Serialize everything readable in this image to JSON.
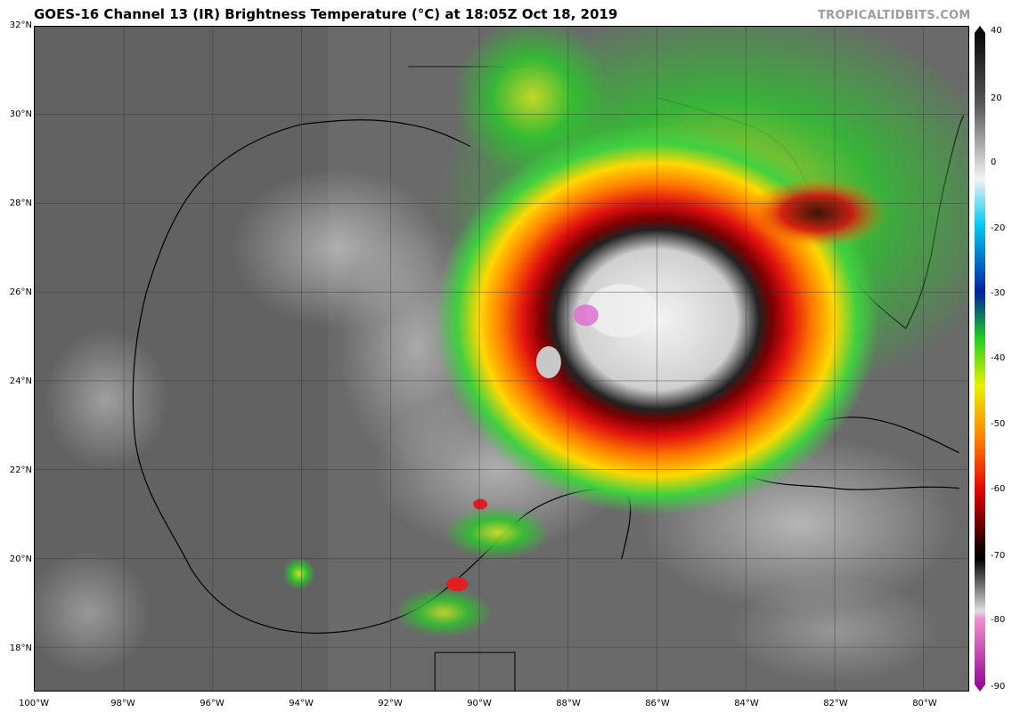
{
  "header": {
    "title": "GOES-16 Channel 13 (IR) Brightness Temperature (°C) at 18:05Z Oct 18, 2019",
    "watermark": "TROPICALTIDBITS.COM"
  },
  "map": {
    "lat_labels": [
      "32°N",
      "30°N",
      "28°N",
      "26°N",
      "24°N",
      "22°N",
      "20°N",
      "18°N"
    ],
    "lon_labels": [
      "100°W",
      "98°W",
      "96°W",
      "94°W",
      "92°W",
      "90°W",
      "88°W",
      "86°W",
      "84°W",
      "82°W",
      "80°W"
    ]
  },
  "colorbar": {
    "labels": [
      "40",
      "20",
      "0",
      "-20",
      "-30",
      "-40",
      "-50",
      "-60",
      "-70",
      "-80",
      "-90"
    ]
  }
}
